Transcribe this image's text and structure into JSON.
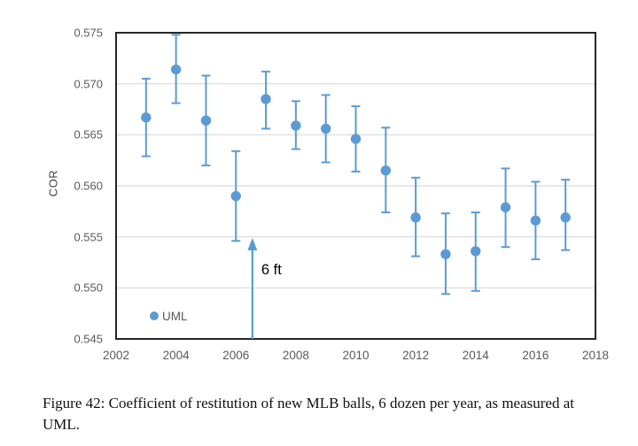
{
  "caption": "Figure 42: Coefficient of restitution of new MLB balls, 6 dozen per year, as measured at UML.",
  "colors": {
    "marker": "#5B9BD5",
    "error_bar": "#5B9BD5",
    "grid": "#D9D9D9",
    "plot_border": "#262626",
    "axis_text": "#595959",
    "annotation_text": "#000000"
  },
  "chart_data": {
    "type": "scatter",
    "title": "",
    "xlabel": "",
    "ylabel": "COR",
    "xlim": [
      2002,
      2018
    ],
    "ylim": [
      0.545,
      0.575
    ],
    "x_ticks": [
      "2002",
      "2004",
      "2006",
      "2008",
      "2010",
      "2012",
      "2014",
      "2016",
      "2018"
    ],
    "y_ticks": [
      "0.575",
      "0.570",
      "0.565",
      "0.560",
      "0.555",
      "0.550",
      "0.545"
    ],
    "grid": "horizontal-only",
    "legend": {
      "label": "UML",
      "position": "inside-lower-left"
    },
    "series": [
      {
        "name": "UML",
        "marker": "circle",
        "color": "#5B9BD5",
        "error_bars": true,
        "points": [
          {
            "year": 2003,
            "cor": 0.5667,
            "lo": 0.5629,
            "hi": 0.5705
          },
          {
            "year": 2004,
            "cor": 0.5714,
            "lo": 0.5681,
            "hi": 0.5748
          },
          {
            "year": 2005,
            "cor": 0.5664,
            "lo": 0.562,
            "hi": 0.5708
          },
          {
            "year": 2006,
            "cor": 0.559,
            "lo": 0.5546,
            "hi": 0.5634
          },
          {
            "year": 2007,
            "cor": 0.5685,
            "lo": 0.5656,
            "hi": 0.5712
          },
          {
            "year": 2008,
            "cor": 0.5659,
            "lo": 0.5636,
            "hi": 0.5683
          },
          {
            "year": 2009,
            "cor": 0.5656,
            "lo": 0.5623,
            "hi": 0.5689
          },
          {
            "year": 2010,
            "cor": 0.5646,
            "lo": 0.5614,
            "hi": 0.5678
          },
          {
            "year": 2011,
            "cor": 0.5615,
            "lo": 0.5574,
            "hi": 0.5657
          },
          {
            "year": 2012,
            "cor": 0.5569,
            "lo": 0.5531,
            "hi": 0.5608
          },
          {
            "year": 2013,
            "cor": 0.5533,
            "lo": 0.5494,
            "hi": 0.5573
          },
          {
            "year": 2014,
            "cor": 0.5536,
            "lo": 0.5497,
            "hi": 0.5574
          },
          {
            "year": 2015,
            "cor": 0.5579,
            "lo": 0.554,
            "hi": 0.5617
          },
          {
            "year": 2016,
            "cor": 0.5566,
            "lo": 0.5528,
            "hi": 0.5604
          },
          {
            "year": 2017,
            "cor": 0.5569,
            "lo": 0.5537,
            "hi": 0.5606
          }
        ]
      }
    ],
    "annotation": {
      "text": "6 ft",
      "arrow_x": 2006.55,
      "arrow_tip_y": 0.5549,
      "arrow_base_y": 0.545
    }
  }
}
